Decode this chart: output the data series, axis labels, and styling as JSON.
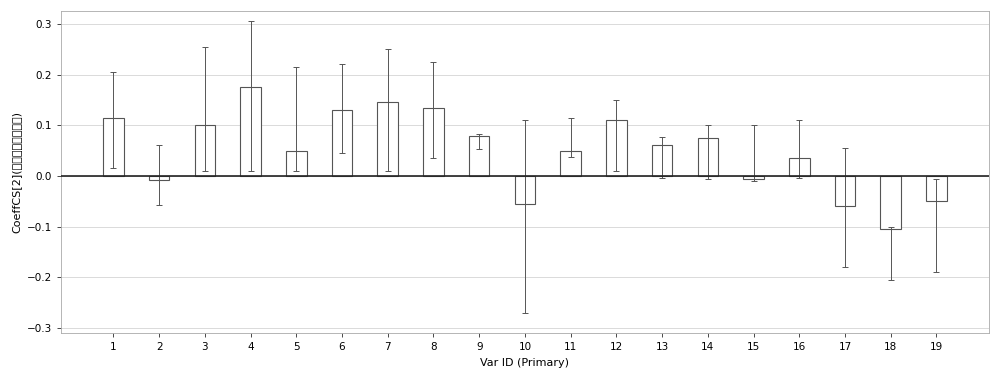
{
  "categories": [
    "1",
    "2",
    "3",
    "4",
    "5",
    "6",
    "7",
    "8",
    "9",
    "10",
    "11",
    "12",
    "13",
    "14",
    "15",
    "16",
    "17",
    "18",
    "19"
  ],
  "bar_values": [
    0.115,
    -0.008,
    0.1,
    0.175,
    0.05,
    0.13,
    0.145,
    0.135,
    0.078,
    -0.055,
    0.05,
    0.11,
    0.062,
    0.075,
    -0.005,
    0.035,
    -0.06,
    -0.105,
    -0.05
  ],
  "err_low": [
    0.1,
    0.05,
    0.09,
    0.165,
    0.04,
    0.085,
    0.135,
    0.1,
    0.025,
    0.215,
    0.012,
    0.1,
    0.065,
    0.08,
    0.004,
    0.038,
    0.12,
    0.1,
    0.14
  ],
  "err_high": [
    0.09,
    0.07,
    0.155,
    0.13,
    0.165,
    0.09,
    0.105,
    0.09,
    0.005,
    0.165,
    0.065,
    0.04,
    0.015,
    0.025,
    0.105,
    0.075,
    0.115,
    0.005,
    0.045
  ],
  "ylabel": "CoeffCS[2](血小板聚集抑制率)",
  "xlabel": "Var ID (Primary)",
  "ylim": [
    -0.31,
    0.325
  ],
  "yticks": [
    -0.3,
    -0.2,
    -0.1,
    0.0,
    0.1,
    0.2,
    0.3
  ],
  "bar_color": "#ffffff",
  "bar_edge_color": "#555555",
  "err_color": "#555555",
  "background_color": "#ffffff",
  "grid_color": "#cccccc",
  "zero_line_color": "#222222",
  "bar_width": 0.45,
  "axis_fontsize": 8,
  "tick_fontsize": 7.5
}
